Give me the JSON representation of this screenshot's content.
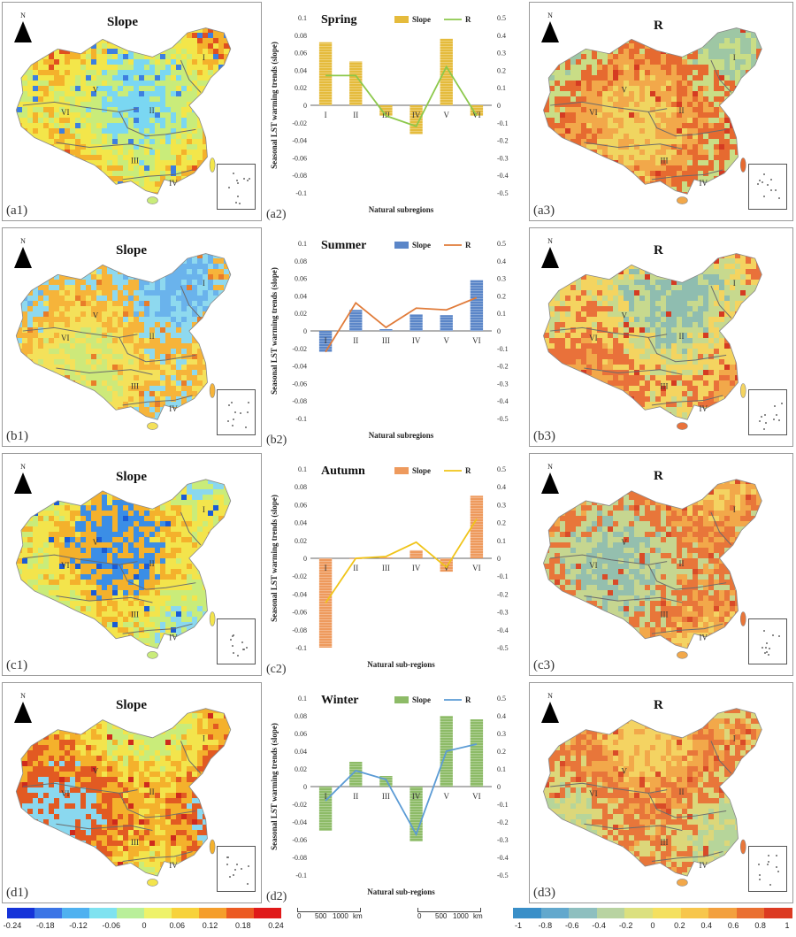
{
  "maps": [
    {
      "id": "a1",
      "label": "(a1)",
      "title": "Slope",
      "kind": "slope",
      "palette": [
        "#7ad7f2",
        "#c9ec7a",
        "#f3e64a",
        "#f4b12c",
        "#e0501f",
        "#3d7fe0"
      ]
    },
    {
      "id": "a3",
      "label": "(a3)",
      "title": "R",
      "kind": "r",
      "palette": [
        "#f0d560",
        "#f2a84a",
        "#e66a30",
        "#c9dd86",
        "#9ec7a4",
        "#d53b22"
      ]
    },
    {
      "id": "b1",
      "label": "(b1)",
      "title": "Slope",
      "kind": "slope",
      "palette": [
        "#cde97a",
        "#f4e15a",
        "#f6b43a",
        "#8ed9ef",
        "#6ab3ec",
        "#e87d2a"
      ]
    },
    {
      "id": "b3",
      "label": "(b3)",
      "title": "R",
      "kind": "r",
      "palette": [
        "#f2a84a",
        "#e9713a",
        "#f4d460",
        "#c7d98e",
        "#8fbdb0",
        "#d53b22"
      ]
    },
    {
      "id": "c1",
      "label": "(c1)",
      "title": "Slope",
      "kind": "slope",
      "palette": [
        "#8ad8ef",
        "#c9ec7a",
        "#f3e44c",
        "#f4b12c",
        "#3b8ee6",
        "#1a5bd6"
      ]
    },
    {
      "id": "c3",
      "label": "(c3)",
      "title": "R",
      "kind": "r",
      "palette": [
        "#f4d362",
        "#f2a84a",
        "#e8763a",
        "#c6d690",
        "#94bfae",
        "#d94b28"
      ]
    },
    {
      "id": "d1",
      "label": "(d1)",
      "title": "Slope",
      "kind": "slope",
      "palette": [
        "#c9ec7a",
        "#f3e44c",
        "#f4b12c",
        "#e25a22",
        "#8ad8ef",
        "#cf2a1d"
      ]
    },
    {
      "id": "d3",
      "label": "(d3)",
      "title": "R",
      "kind": "r",
      "palette": [
        "#f4d362",
        "#f2a84a",
        "#e8763a",
        "#dcd77a",
        "#b6d59a",
        "#d94b28"
      ]
    }
  ],
  "region_labels": [
    "I",
    "II",
    "III",
    "IV",
    "V",
    "VI"
  ],
  "north_label": "N",
  "chart_data": [
    {
      "type": "bar",
      "label": "(a2)",
      "title": "Spring",
      "categories": [
        "I",
        "II",
        "III",
        "IV",
        "V",
        "VI"
      ],
      "series": [
        {
          "name": "Slope",
          "values": [
            0.072,
            0.05,
            -0.012,
            -0.033,
            0.076,
            -0.012
          ]
        },
        {
          "name": "R",
          "values": [
            0.17,
            0.17,
            -0.06,
            -0.12,
            0.22,
            -0.06
          ]
        }
      ],
      "xlabel": "Natural subregions",
      "ylabel": "Seasonal LST warming trends (slope)",
      "ylim": [
        -0.1,
        0.1
      ],
      "y2lim": [
        -0.5,
        0.5
      ],
      "yticks": [
        "0.1",
        "0.08",
        "0.06",
        "0.04",
        "0.02",
        "0",
        "-0.02",
        "-0.04",
        "-0.06",
        "-0.08",
        "-0.1"
      ],
      "y2ticks": [
        "0.5",
        "0.4",
        "0.3",
        "0.2",
        "0.1",
        "0",
        "-0.1",
        "-0.2",
        "-0.3",
        "-0.4",
        "-0.5"
      ],
      "colors": {
        "bar": "#e5bb3c",
        "line": "#8cc84b"
      }
    },
    {
      "type": "bar",
      "label": "(b2)",
      "title": "Summer",
      "categories": [
        "I",
        "II",
        "III",
        "IV",
        "V",
        "VI"
      ],
      "series": [
        {
          "name": "Slope",
          "values": [
            -0.024,
            0.024,
            0.002,
            0.019,
            0.018,
            0.058
          ]
        },
        {
          "name": "R",
          "values": [
            -0.12,
            0.16,
            0.02,
            0.13,
            0.12,
            0.19
          ]
        }
      ],
      "xlabel": "Natural subregions",
      "ylabel": "Seasonal LST warming trends (slope)",
      "ylim": [
        -0.1,
        0.1
      ],
      "y2lim": [
        -0.5,
        0.5
      ],
      "yticks": [
        "0.1",
        "0.08",
        "0.06",
        "0.04",
        "0.02",
        "0",
        "-0.02",
        "-0.04",
        "-0.06",
        "-0.08",
        "-0.1"
      ],
      "y2ticks": [
        "0.5",
        "0.4",
        "0.3",
        "0.2",
        "0.1",
        "0",
        "-0.1",
        "-0.2",
        "-0.3",
        "-0.4",
        "-0.5"
      ],
      "colors": {
        "bar": "#5b86c8",
        "line": "#e07b39"
      }
    },
    {
      "type": "bar",
      "label": "(c2)",
      "title": "Autumn",
      "categories": [
        "I",
        "II",
        "III",
        "IV",
        "V",
        "VI"
      ],
      "series": [
        {
          "name": "Slope",
          "values": [
            -0.1,
            0.0,
            0.001,
            0.009,
            -0.015,
            0.07
          ]
        },
        {
          "name": "R",
          "values": [
            -0.25,
            0.0,
            0.01,
            0.09,
            -0.05,
            0.22
          ]
        }
      ],
      "xlabel": "Natural sub-regions",
      "ylabel": "Seasonal LST warming trends (slope)",
      "ylim": [
        -0.1,
        0.1
      ],
      "y2lim": [
        -0.5,
        0.5
      ],
      "yticks": [
        "0.1",
        "0.08",
        "0.06",
        "0.04",
        "0.02",
        "0",
        "-0.02",
        "-0.04",
        "-0.06",
        "-0.08",
        "-0.1"
      ],
      "y2ticks": [
        "0.5",
        "0.4",
        "0.3",
        "0.2",
        "0.1",
        "0",
        "-0.1",
        "-0.2",
        "-0.3",
        "-0.4",
        "-0.5"
      ],
      "colors": {
        "bar": "#ee9a5d",
        "line": "#f0c419"
      }
    },
    {
      "type": "bar",
      "label": "(d2)",
      "title": "Winter",
      "categories": [
        "I",
        "II",
        "III",
        "IV",
        "V",
        "VI"
      ],
      "series": [
        {
          "name": "Slope",
          "values": [
            -0.05,
            0.028,
            0.012,
            -0.062,
            0.08,
            0.076
          ]
        },
        {
          "name": "R",
          "values": [
            -0.08,
            0.09,
            0.04,
            -0.27,
            0.2,
            0.24
          ]
        }
      ],
      "xlabel": "Natural sub-regions",
      "ylabel": "Seasonal LST warming trends (slope)",
      "ylim": [
        -0.1,
        0.1
      ],
      "y2lim": [
        -0.5,
        0.5
      ],
      "yticks": [
        "0.1",
        "0.08",
        "0.06",
        "0.04",
        "0.02",
        "0",
        "-0.02",
        "-0.04",
        "-0.06",
        "-0.08",
        "-0.1"
      ],
      "y2ticks": [
        "0.5",
        "0.4",
        "0.3",
        "0.2",
        "0.1",
        "0",
        "-0.1",
        "-0.2",
        "-0.3",
        "-0.4",
        "-0.5"
      ],
      "colors": {
        "bar": "#8dbb67",
        "line": "#5b9bd5"
      }
    }
  ],
  "legend_slope": {
    "ticks": [
      "-0.24",
      "-0.18",
      "-0.12",
      "-0.06",
      "0",
      "0.06",
      "0.12",
      "0.18",
      "0.24"
    ],
    "colors": [
      "#1533d9",
      "#3b74e6",
      "#4fb1f0",
      "#7fe2f0",
      "#b9ef9a",
      "#eef26a",
      "#f7d23b",
      "#f59e2b",
      "#ec5a22",
      "#e01a1a"
    ]
  },
  "legend_r": {
    "ticks": [
      "-1",
      "-0.8",
      "-0.6",
      "-0.4",
      "-0.2",
      "0",
      "0.2",
      "0.4",
      "0.6",
      "0.8",
      "1"
    ],
    "colors": [
      "#3a8fc8",
      "#62a8cd",
      "#8ebfbf",
      "#b8d3a1",
      "#dbe07f",
      "#f4e060",
      "#f7c64c",
      "#f3a03e",
      "#ea6f31",
      "#dc3a22"
    ]
  },
  "scalebars": [
    {
      "ticks": [
        "0",
        "500",
        "1000"
      ],
      "unit": "km"
    },
    {
      "ticks": [
        "0",
        "500",
        "1000"
      ],
      "unit": "km"
    }
  ]
}
